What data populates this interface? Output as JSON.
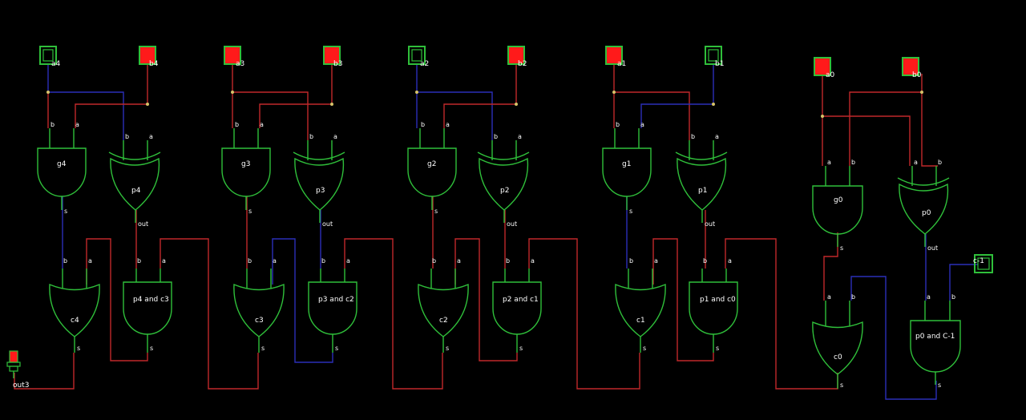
{
  "colors": {
    "background": "#000000",
    "gate": "#2fbf3a",
    "wire_high": "#c0282a",
    "wire_low": "#2b2fb8",
    "input_on": "#ff1a1a",
    "junction": "#d6c36a"
  },
  "inputs": [
    {
      "name": "a4",
      "state": "off"
    },
    {
      "name": "b4",
      "state": "on"
    },
    {
      "name": "a3",
      "state": "on"
    },
    {
      "name": "b3",
      "state": "on"
    },
    {
      "name": "a2",
      "state": "off"
    },
    {
      "name": "b2",
      "state": "on"
    },
    {
      "name": "a1",
      "state": "on"
    },
    {
      "name": "b1",
      "state": "off"
    },
    {
      "name": "a0",
      "state": "on"
    },
    {
      "name": "b0",
      "state": "on"
    },
    {
      "name": "c-1",
      "state": "off"
    }
  ],
  "gates": {
    "g4": "g4",
    "p4": "p4",
    "g3": "g3",
    "p3": "p3",
    "g2": "g2",
    "p2": "p2",
    "g1": "g1",
    "p1": "p1",
    "g0": "g0",
    "p0": "p0",
    "c4": "c4",
    "c3": "c3",
    "c2": "c2",
    "c1": "c1",
    "c0": "c0",
    "p4c3": "p4 and c3",
    "p3c2": "p3 and c2",
    "p2c1": "p2 and c1",
    "p1c0": "p1 and c0",
    "p0cm1": "p0 and C-1"
  },
  "pins": {
    "a": "a",
    "b": "b",
    "s": "s",
    "out": "out"
  },
  "output": {
    "name": "out3",
    "state": "on"
  }
}
